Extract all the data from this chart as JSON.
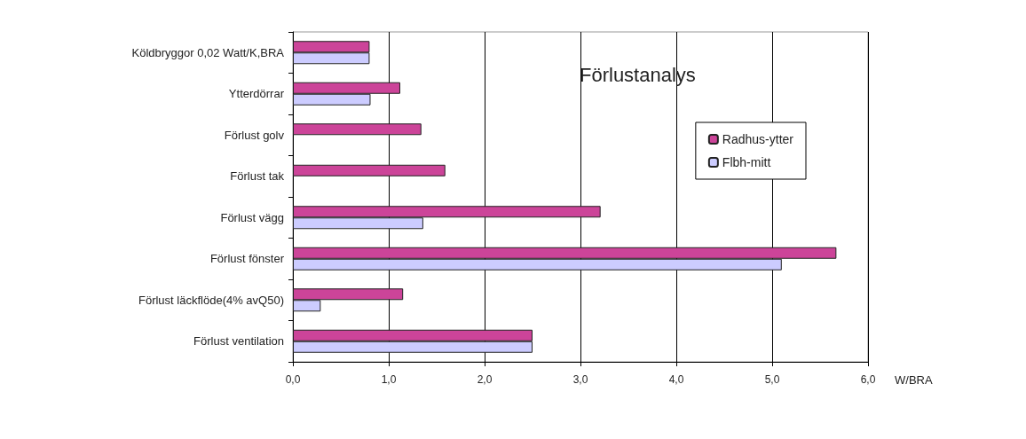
{
  "chart_data": {
    "type": "bar",
    "orientation": "horizontal",
    "title": "Förlustanalys",
    "xlabel": "W/BRA",
    "categories": [
      "Köldbryggor 0,02 Watt/K,BRA",
      "Ytterdörrar",
      "Förlust golv",
      "Förlust tak",
      "Förlust vägg",
      "Förlust fönster",
      "Förlust läckflöde(4% avQ50)",
      "Förlust ventilation"
    ],
    "series": [
      {
        "name": "Radhus-ytter",
        "color": "#cc4499",
        "values": [
          0.8,
          1.12,
          1.34,
          1.59,
          3.21,
          5.67,
          1.15,
          2.5
        ]
      },
      {
        "name": "Flbh-mitt",
        "color": "#ccccff",
        "values": [
          0.8,
          0.81,
          null,
          null,
          1.36,
          5.1,
          0.29,
          2.5
        ]
      }
    ],
    "xlim": [
      0,
      6
    ],
    "xticks": [
      {
        "value": 0,
        "label": "0,0"
      },
      {
        "value": 1,
        "label": "1,0"
      },
      {
        "value": 2,
        "label": "2,0"
      },
      {
        "value": 3,
        "label": "3,0"
      },
      {
        "value": 4,
        "label": "4,0"
      },
      {
        "value": 5,
        "label": "5,0"
      },
      {
        "value": 6,
        "label": "6,0"
      }
    ],
    "grid": "x",
    "legend": "top right"
  }
}
